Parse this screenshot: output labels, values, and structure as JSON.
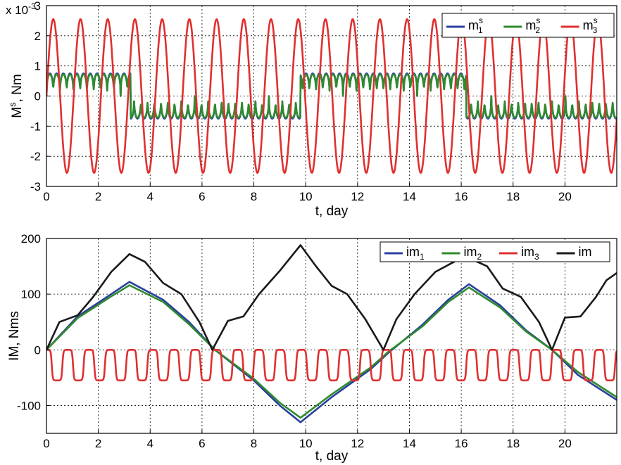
{
  "chart_data": [
    {
      "type": "line",
      "xlabel": "t, day",
      "ylabel": "M",
      "ylabel_sup": "s",
      "ylabel_suffix": ", Nm",
      "y_multiplier": "x 10",
      "y_multiplier_exp": "-3",
      "xlim": [
        0,
        22
      ],
      "ylim": [
        -3,
        3
      ],
      "xticks": [
        0,
        2,
        4,
        6,
        8,
        10,
        12,
        14,
        16,
        18,
        20
      ],
      "yticks": [
        -3,
        -2,
        -1,
        0,
        1,
        2,
        3
      ],
      "grid": true,
      "legend_position": "top-right",
      "series": [
        {
          "name": "m",
          "sub": "1",
          "sup": "s",
          "color": "#2a3f9e",
          "model": "sign_square",
          "amplitude": 0.75,
          "period": 0.52,
          "sign_flips": [
            3.25,
            9.8,
            16.2
          ],
          "initial_sign": 1
        },
        {
          "name": "m",
          "sub": "2",
          "sup": "s",
          "color": "#2e8b2e",
          "model": "sign_square",
          "amplitude": 0.72,
          "period": 0.52,
          "sign_flips": [
            3.25,
            9.8,
            16.2
          ],
          "initial_sign": 1
        },
        {
          "name": "m",
          "sub": "3",
          "sup": "s",
          "color": "#e03030",
          "model": "sine",
          "amplitude": 2.55,
          "period": 1.05,
          "phase": 0.0
        }
      ]
    },
    {
      "type": "line",
      "xlabel": "t, day",
      "ylabel": "IM, Nms",
      "xlim": [
        0,
        22
      ],
      "ylim": [
        -150,
        200
      ],
      "xticks": [
        0,
        2,
        4,
        6,
        8,
        10,
        12,
        14,
        16,
        18,
        20
      ],
      "yticks": [
        -100,
        0,
        100,
        200
      ],
      "grid": true,
      "legend_position": "top-right",
      "series": [
        {
          "name": "im",
          "sub": "1",
          "color": "#2a3f9e",
          "points": [
            [
              0,
              0
            ],
            [
              1.2,
              60
            ],
            [
              2.5,
              100
            ],
            [
              3.2,
              122
            ],
            [
              4.5,
              90
            ],
            [
              5.5,
              50
            ],
            [
              6.5,
              0
            ],
            [
              8,
              -55
            ],
            [
              9,
              -100
            ],
            [
              9.8,
              -130
            ],
            [
              11,
              -85
            ],
            [
              12.5,
              -35
            ],
            [
              13.2,
              -5
            ],
            [
              14.5,
              45
            ],
            [
              15.5,
              90
            ],
            [
              16.3,
              118
            ],
            [
              17.5,
              80
            ],
            [
              18.5,
              35
            ],
            [
              19.5,
              0
            ],
            [
              20.5,
              -45
            ],
            [
              22,
              -90
            ]
          ]
        },
        {
          "name": "im",
          "sub": "2",
          "color": "#2e8b2e",
          "points": [
            [
              0,
              0
            ],
            [
              1.2,
              57
            ],
            [
              2.5,
              96
            ],
            [
              3.2,
              116
            ],
            [
              4.5,
              86
            ],
            [
              5.5,
              46
            ],
            [
              6.5,
              0
            ],
            [
              8,
              -52
            ],
            [
              9,
              -95
            ],
            [
              9.8,
              -122
            ],
            [
              11,
              -80
            ],
            [
              12.5,
              -32
            ],
            [
              13.2,
              -3
            ],
            [
              14.5,
              42
            ],
            [
              15.5,
              86
            ],
            [
              16.3,
              112
            ],
            [
              17.5,
              76
            ],
            [
              18.5,
              33
            ],
            [
              19.5,
              0
            ],
            [
              20.5,
              -40
            ],
            [
              22,
              -85
            ]
          ]
        },
        {
          "name": "im",
          "sub": "3",
          "color": "#e03030",
          "model": "dips",
          "low": -55,
          "period": 0.82
        },
        {
          "name": "im",
          "sub": "",
          "color": "#1a1a1a",
          "points": [
            [
              0,
              0
            ],
            [
              0.5,
              50
            ],
            [
              1.2,
              62
            ],
            [
              1.8,
              95
            ],
            [
              2.5,
              140
            ],
            [
              3.2,
              172
            ],
            [
              3.8,
              158
            ],
            [
              4.5,
              120
            ],
            [
              5.2,
              100
            ],
            [
              5.9,
              50
            ],
            [
              6.4,
              0
            ],
            [
              7.0,
              52
            ],
            [
              7.6,
              60
            ],
            [
              8.2,
              100
            ],
            [
              9.0,
              142
            ],
            [
              9.8,
              188
            ],
            [
              10.4,
              150
            ],
            [
              11.0,
              115
            ],
            [
              11.6,
              100
            ],
            [
              12.3,
              55
            ],
            [
              13.0,
              0
            ],
            [
              13.5,
              55
            ],
            [
              14.2,
              100
            ],
            [
              15.0,
              140
            ],
            [
              15.8,
              160
            ],
            [
              16.3,
              165
            ],
            [
              17.0,
              150
            ],
            [
              17.6,
              110
            ],
            [
              18.3,
              95
            ],
            [
              19.0,
              50
            ],
            [
              19.5,
              0
            ],
            [
              20.0,
              58
            ],
            [
              20.6,
              60
            ],
            [
              21.2,
              95
            ],
            [
              21.6,
              125
            ],
            [
              22,
              138
            ]
          ]
        }
      ]
    }
  ]
}
